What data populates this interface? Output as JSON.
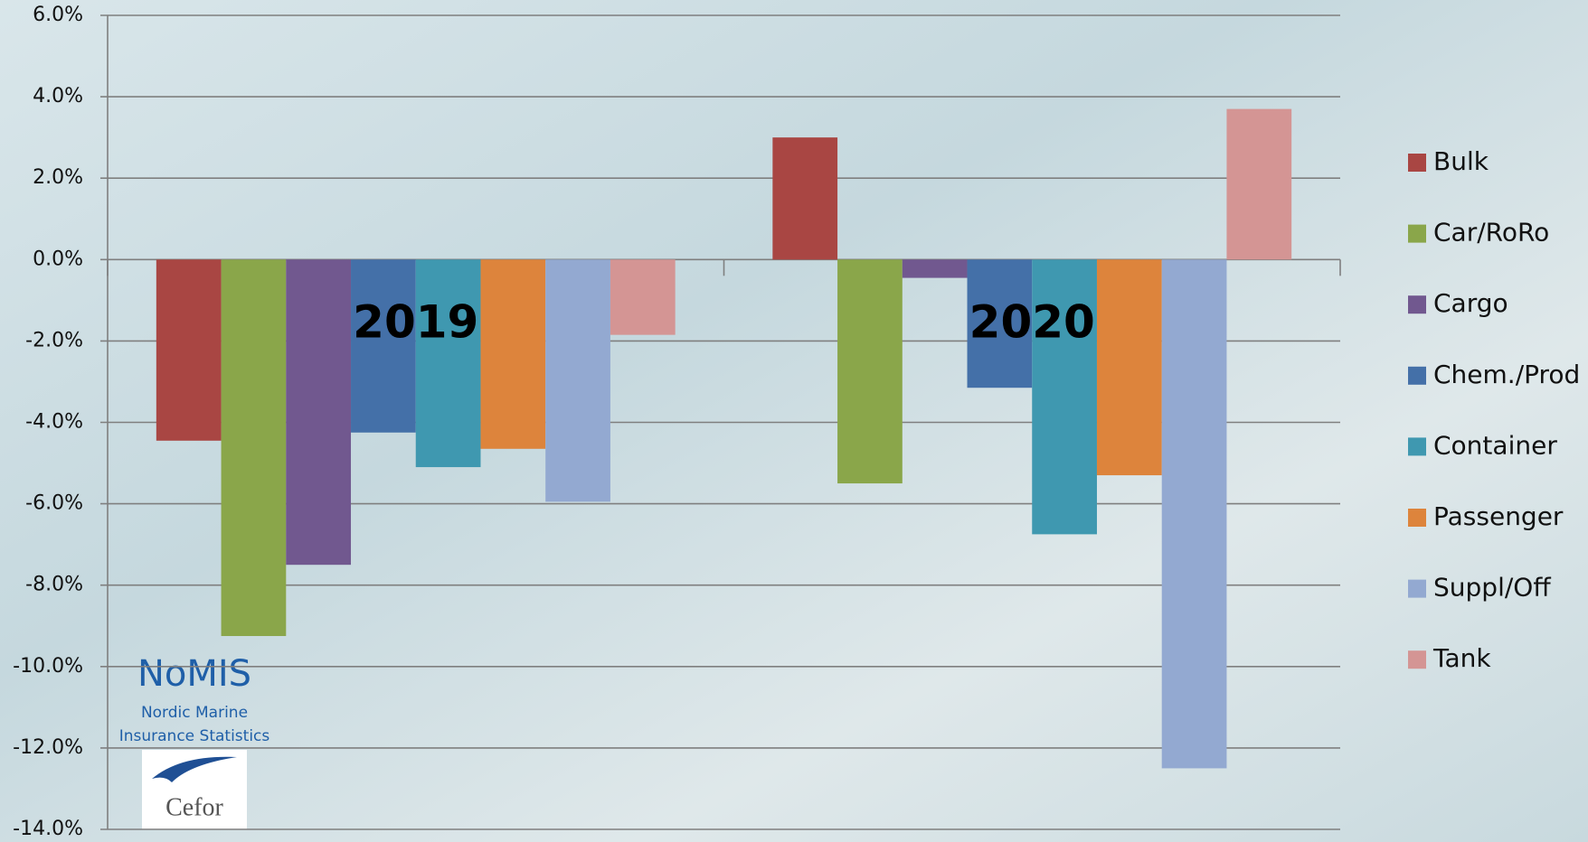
{
  "chart_data": {
    "type": "bar",
    "categories": [
      "2019",
      "2020"
    ],
    "series": [
      {
        "name": "Bulk",
        "color": "#a94643",
        "values": [
          -4.45,
          3.0
        ]
      },
      {
        "name": "Car/RoRo",
        "color": "#8aa64a",
        "values": [
          -9.25,
          -5.5
        ]
      },
      {
        "name": "Cargo",
        "color": "#71588f",
        "values": [
          -7.5,
          -0.45
        ]
      },
      {
        "name": "Chem./Prod",
        "color": "#4470a8",
        "values": [
          -4.25,
          -3.15
        ]
      },
      {
        "name": "Container",
        "color": "#3f98b0",
        "values": [
          -5.1,
          -6.75
        ]
      },
      {
        "name": "Passenger",
        "color": "#dd843c",
        "values": [
          -4.65,
          -5.3
        ]
      },
      {
        "name": "Suppl/Off",
        "color": "#93a9d1",
        "values": [
          -5.95,
          -12.5
        ]
      },
      {
        "name": "Tank",
        "color": "#d49594",
        "values": [
          -1.85,
          3.7
        ]
      }
    ],
    "ylim": [
      -14,
      6
    ],
    "yticks": [
      {
        "value": -14,
        "label": "-14.0%"
      },
      {
        "value": -12,
        "label": "-12.0%"
      },
      {
        "value": -10,
        "label": "-10.0%"
      },
      {
        "value": -8,
        "label": "-8.0%"
      },
      {
        "value": -6,
        "label": "-6.0%"
      },
      {
        "value": -4,
        "label": "-4.0%"
      },
      {
        "value": -2,
        "label": "-2.0%"
      },
      {
        "value": 0,
        "label": "0.0%"
      },
      {
        "value": 2,
        "label": "2.0%"
      },
      {
        "value": 4,
        "label": "4.0%"
      },
      {
        "value": 6,
        "label": "6.0%"
      }
    ],
    "grid": true,
    "legend": "right"
  },
  "logo": {
    "name": "NoMIS",
    "line1": "Nordic Marine",
    "line2": "Insurance Statistics",
    "brand": "Cefor"
  }
}
